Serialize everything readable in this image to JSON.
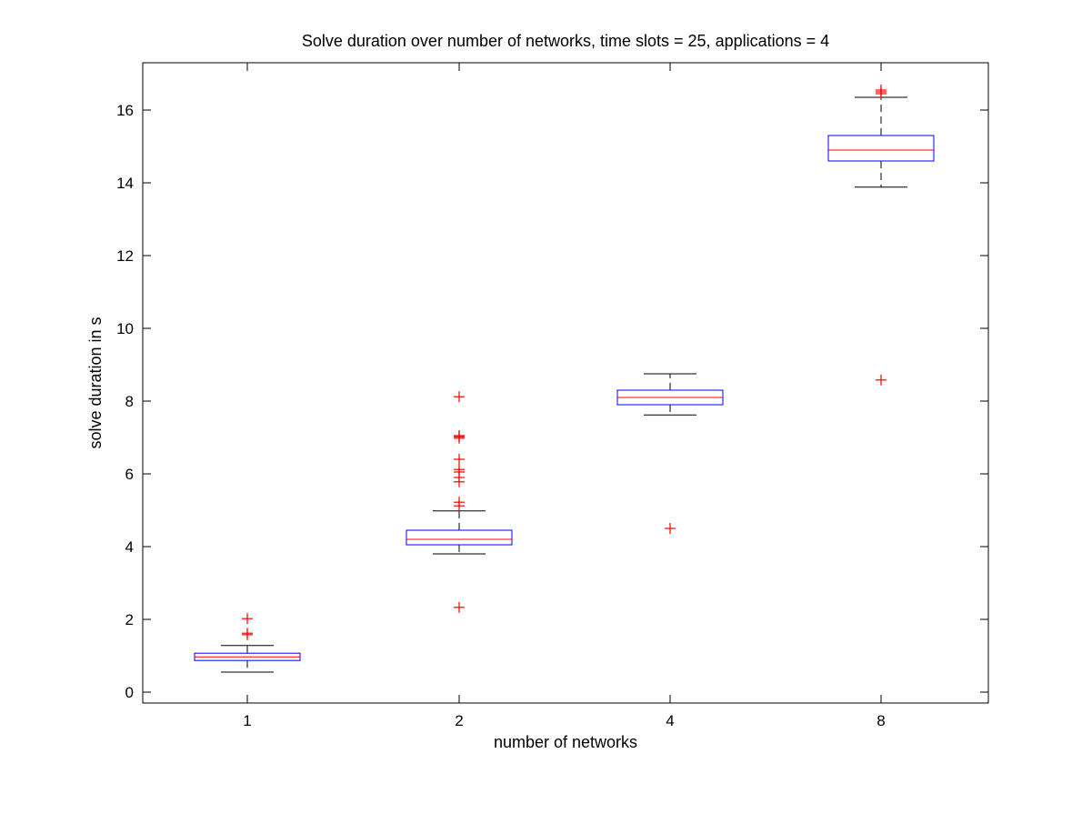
{
  "chart_data": {
    "type": "box",
    "title": "Solve duration over number of networks, time slots = 25, applications = 4",
    "xlabel": "number of networks",
    "ylabel": "solve duration in s",
    "categories": [
      "1",
      "2",
      "4",
      "8"
    ],
    "ylim": [
      -0.3,
      17.3
    ],
    "yticks": [
      0,
      2,
      4,
      6,
      8,
      10,
      12,
      14,
      16
    ],
    "grid": false,
    "boxes": [
      {
        "category": "1",
        "whisker_low": 0.55,
        "q1": 0.87,
        "median": 0.97,
        "q3": 1.07,
        "whisker_high": 1.28,
        "outliers": [
          1.58,
          1.62,
          2.02
        ]
      },
      {
        "category": "2",
        "whisker_low": 3.8,
        "q1": 4.05,
        "median": 4.2,
        "q3": 4.45,
        "whisker_high": 4.98,
        "outliers": [
          2.33,
          5.12,
          5.22,
          5.78,
          5.9,
          6.05,
          6.12,
          6.4,
          6.98,
          7.02,
          7.05,
          8.12
        ]
      },
      {
        "category": "4",
        "whisker_low": 7.62,
        "q1": 7.9,
        "median": 8.1,
        "q3": 8.3,
        "whisker_high": 8.75,
        "outliers": [
          4.5
        ]
      },
      {
        "category": "8",
        "whisker_low": 13.88,
        "q1": 14.6,
        "median": 14.9,
        "q3": 15.3,
        "whisker_high": 16.35,
        "outliers": [
          8.58,
          16.45,
          16.5,
          16.55
        ]
      }
    ],
    "colors": {
      "box": "#0000ff",
      "median": "#ff0000",
      "whisker": "#000000",
      "outlier": "#ff0000",
      "axes": "#000000"
    }
  }
}
